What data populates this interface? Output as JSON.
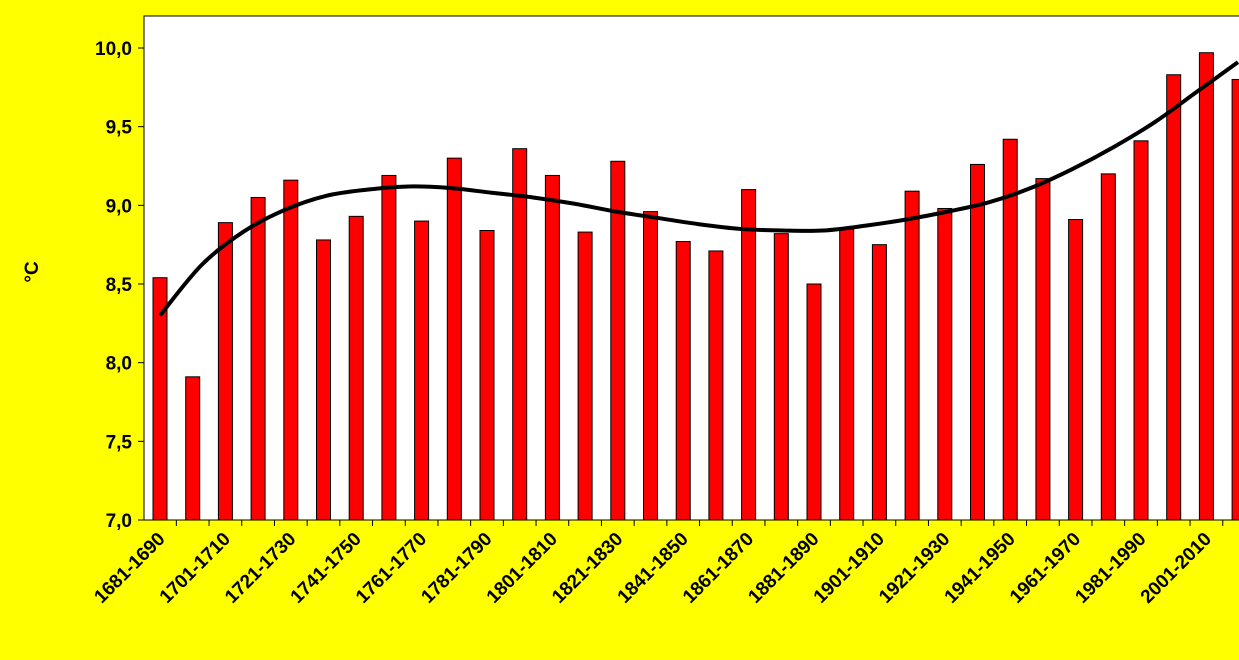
{
  "colors": {
    "background": "#ffff00",
    "plot_area": "#ffffff",
    "bar": "#ff0000",
    "bar_outline": "#000000",
    "trend": "#000000"
  },
  "chart_data": {
    "type": "bar",
    "ylabel": "°C",
    "ylim": [
      7.0,
      10.0
    ],
    "y_ticks": [
      "7,0",
      "7,5",
      "8,0",
      "8,5",
      "9,0",
      "9,5",
      "10,0"
    ],
    "y_tick_values": [
      7.0,
      7.5,
      8.0,
      8.5,
      9.0,
      9.5,
      10.0
    ],
    "grid": false,
    "legend": "none",
    "categories": [
      "1681-1690",
      "1691-1700",
      "1701-1710",
      "1711-1720",
      "1721-1730",
      "1731-1740",
      "1741-1750",
      "1751-1760",
      "1761-1770",
      "1771-1780",
      "1781-1790",
      "1791-1800",
      "1801-1810",
      "1811-1820",
      "1821-1830",
      "1831-1840",
      "1841-1850",
      "1851-1860",
      "1861-1870",
      "1871-1880",
      "1881-1890",
      "1891-1900",
      "1901-1910",
      "1911-1920",
      "1921-1930",
      "1931-1940",
      "1941-1950",
      "1951-1960",
      "1961-1970",
      "1971-1980",
      "1981-1990",
      "1991-2000",
      "2001-2010",
      "2011-2020"
    ],
    "shown_x_labels": [
      "1681-1690",
      "1701-1710",
      "1721-1730",
      "1741-1750",
      "1761-1770",
      "1781-1790",
      "1801-1810",
      "1821-1830",
      "1841-1850",
      "1861-1870",
      "1881-1890",
      "1901-1910",
      "1921-1930",
      "1941-1950",
      "1961-1970",
      "1981-1990",
      "2001-2010"
    ],
    "values": [
      8.54,
      7.91,
      8.89,
      9.05,
      9.16,
      8.78,
      8.93,
      9.19,
      8.9,
      9.3,
      8.84,
      9.36,
      9.19,
      8.83,
      9.28,
      8.96,
      8.77,
      8.71,
      9.1,
      8.82,
      8.5,
      8.85,
      8.75,
      9.09,
      8.98,
      9.26,
      9.42,
      9.17,
      8.91,
      9.2,
      9.41,
      9.83,
      9.97,
      9.8
    ],
    "trend": {
      "type": "polynomial",
      "values": [
        8.3,
        8.62,
        8.83,
        8.97,
        9.06,
        9.1,
        9.12,
        9.11,
        9.08,
        9.05,
        9.01,
        8.96,
        8.92,
        8.88,
        8.85,
        8.84,
        8.84,
        8.87,
        8.91,
        8.96,
        9.02,
        9.11,
        9.23,
        9.37,
        9.53,
        9.72,
        9.91
      ]
    }
  }
}
